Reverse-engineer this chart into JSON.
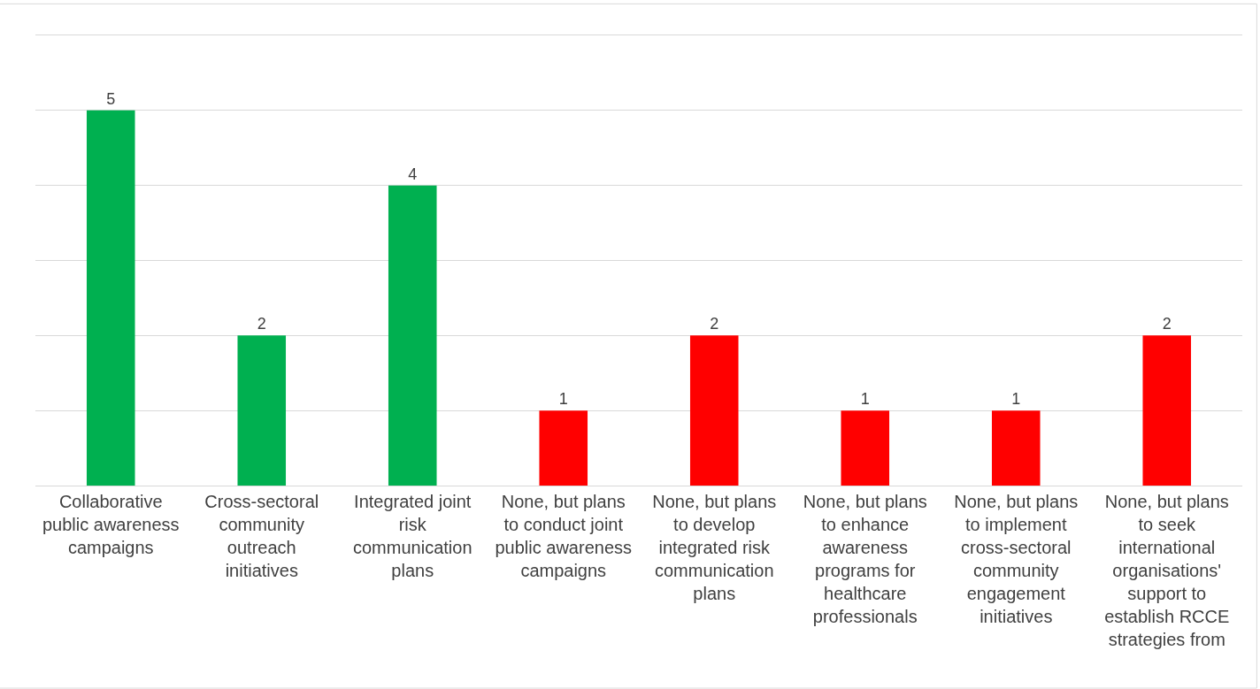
{
  "chart_data": {
    "type": "bar",
    "categories": [
      "Collaborative public awareness campaigns",
      "Cross-sectoral community outreach initiatives",
      "Integrated joint risk communication plans",
      "None, but plans to conduct joint public awareness campaigns",
      "None, but plans to develop integrated risk communication plans",
      "None, but plans to enhance awareness programs for healthcare professionals",
      "None, but plans to implement cross-sectoral community engagement initiatives",
      "None, but plans to seek international organisations' support to establish RCCE strategies from"
    ],
    "values": [
      5,
      2,
      4,
      1,
      2,
      1,
      1,
      2
    ],
    "colors": [
      "#00b050",
      "#00b050",
      "#00b050",
      "#ff0000",
      "#ff0000",
      "#ff0000",
      "#ff0000",
      "#ff0000"
    ],
    "ylim": [
      0,
      6
    ],
    "tick_labels": "x",
    "grid": "y",
    "data_labels": true
  }
}
